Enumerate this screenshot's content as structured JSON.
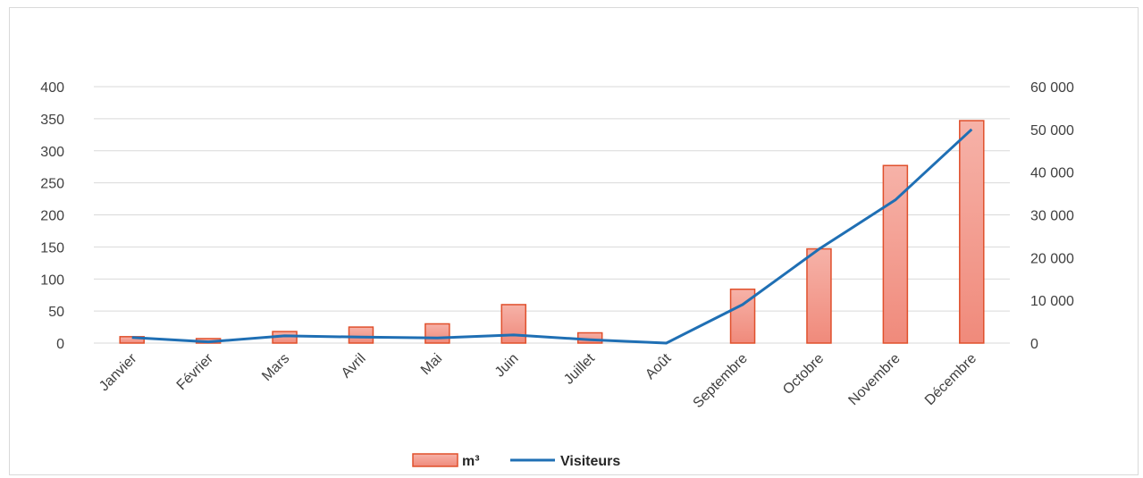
{
  "chart_data": {
    "type": "bar",
    "categories": [
      "Janvier",
      "Février",
      "Mars",
      "Avril",
      "Mai",
      "Juin",
      "Juillet",
      "Août",
      "Septembre",
      "Octobre",
      "Novembre",
      "Décembre"
    ],
    "series": [
      {
        "name": "m³",
        "type": "bar",
        "axis": "left",
        "values": [
          10,
          7,
          18,
          25,
          30,
          60,
          16,
          0,
          84,
          147,
          277,
          347
        ]
      },
      {
        "name": "Visiteurs",
        "type": "line",
        "axis": "right",
        "values": [
          1300,
          300,
          1700,
          1400,
          1200,
          1900,
          800,
          0,
          9000,
          22000,
          33500,
          50000
        ]
      }
    ],
    "y_left": {
      "min": 0,
      "max": 400,
      "ticks": [
        "0",
        "50",
        "100",
        "150",
        "200",
        "250",
        "300",
        "350",
        "400"
      ]
    },
    "y_right": {
      "min": 0,
      "max": 60000,
      "ticks": [
        "0",
        "10 000",
        "20 000",
        "30 000",
        "40 000",
        "50 000",
        "60 000"
      ]
    },
    "grid": true,
    "legend_position": "bottom",
    "colors": {
      "bar_fill": "#f4a79c",
      "bar_stroke": "#e0502c",
      "line": "#1f6fb4",
      "grid": "#d9d9d9",
      "text": "#404040"
    }
  }
}
